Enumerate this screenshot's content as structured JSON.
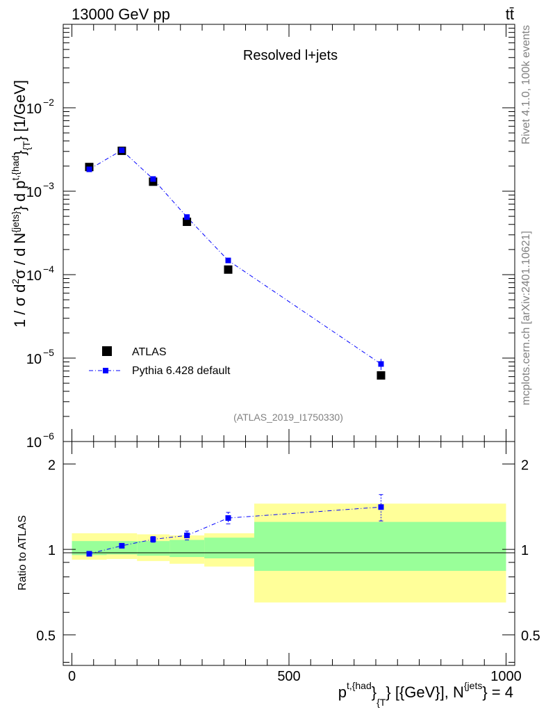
{
  "header": {
    "energy_label": "13000 GeV pp",
    "process_label": "tt̄"
  },
  "side_labels": {
    "rivet": "Rivet 4.1.0,  100k events",
    "source": "mcplots.cern.ch [arXiv:2401.10621]"
  },
  "colors": {
    "data": "#000000",
    "mc": "#0000ff",
    "band_inner": "#99ff99",
    "band_outer": "#ffff99",
    "watermark": "#808080"
  },
  "chart_data": [
    {
      "type": "scatter",
      "panel": "main",
      "title": "Resolved l+jets",
      "analysis_label": "(ATLAS_2019_I1750330)",
      "ylabel": {
        "prefix": "1 / σ d",
        "sup1": "2",
        "mid1": "σ / d N",
        "sup2": "{jets}",
        "mid2": "} d p",
        "sup3": "t,{had",
        "mid3": "}",
        "sub1": "{T",
        "suffix": "} [1/GeV]"
      },
      "yscale": "log",
      "ylim": [
        1e-06,
        0.1
      ],
      "xlim": [
        -20,
        1020
      ],
      "ytick_labels": [
        {
          "value": 1e-06,
          "base": "10",
          "exp": "−6"
        },
        {
          "value": 1e-05,
          "base": "10",
          "exp": "−5"
        },
        {
          "value": 0.0001,
          "base": "10",
          "exp": "−4"
        },
        {
          "value": 0.001,
          "base": "10",
          "exp": "−3"
        },
        {
          "value": 0.01,
          "base": "10",
          "exp": "−2"
        }
      ],
      "legend": {
        "position": "bottom-left",
        "entries": [
          "ATLAS",
          "Pythia 6.428 default"
        ]
      },
      "series": [
        {
          "name": "ATLAS",
          "marker": "square",
          "points": [
            {
              "x": 40,
              "y": 0.00195
            },
            {
              "x": 115,
              "y": 0.00305
            },
            {
              "x": 187,
              "y": 0.0013
            },
            {
              "x": 265,
              "y": 0.00043
            },
            {
              "x": 360,
              "y": 0.000115
            },
            {
              "x": 712,
              "y": 6.2e-06
            }
          ]
        },
        {
          "name": "Pythia 6.428 default",
          "marker": "small-square",
          "line": "dash-dot",
          "points": [
            {
              "x": 40,
              "y": 0.00183,
              "err": 5e-05
            },
            {
              "x": 115,
              "y": 0.0031,
              "err": 7e-05
            },
            {
              "x": 187,
              "y": 0.0014,
              "err": 5e-05
            },
            {
              "x": 265,
              "y": 0.00049,
              "err": 2e-05
            },
            {
              "x": 360,
              "y": 0.000148,
              "err": 7e-06
            },
            {
              "x": 712,
              "y": 8.5e-06,
              "err": 1.3e-06
            }
          ]
        }
      ]
    },
    {
      "type": "scatter",
      "panel": "ratio",
      "ylabel": "Ratio to ATLAS",
      "yscale": "log",
      "ylim": [
        0.39,
        2.4
      ],
      "xlim": [
        -20,
        1020
      ],
      "ytick_labels": [
        {
          "value": 0.5,
          "label": "0.5"
        },
        {
          "value": 1,
          "label": "1"
        },
        {
          "value": 2,
          "label": "2"
        }
      ],
      "xtick_labels": [
        {
          "value": 0,
          "label": "0"
        },
        {
          "value": 500,
          "label": "500"
        },
        {
          "value": 1000,
          "label": "1000"
        }
      ],
      "xlabel": {
        "prefix": "p",
        "sup1": "t,{had",
        "mid1": "}",
        "sub1": "{T",
        "mid2": "} [{GeV}], N",
        "sup2": "{jets",
        "suffix": "} = 4"
      },
      "bands": [
        {
          "x0": 0,
          "x1": 80,
          "inner": [
            0.955,
            1.07
          ],
          "outer": [
            0.92,
            1.14
          ]
        },
        {
          "x0": 80,
          "x1": 150,
          "inner": [
            0.96,
            1.07
          ],
          "outer": [
            0.925,
            1.14
          ]
        },
        {
          "x0": 150,
          "x1": 225,
          "inner": [
            0.95,
            1.07
          ],
          "outer": [
            0.91,
            1.13
          ]
        },
        {
          "x0": 225,
          "x1": 305,
          "inner": [
            0.94,
            1.08
          ],
          "outer": [
            0.89,
            1.12
          ]
        },
        {
          "x0": 305,
          "x1": 420,
          "inner": [
            0.93,
            1.1
          ],
          "outer": [
            0.87,
            1.14
          ]
        },
        {
          "x0": 420,
          "x1": 1000,
          "inner": [
            0.84,
            1.25
          ],
          "outer": [
            0.65,
            1.45
          ]
        }
      ],
      "series": [
        {
          "name": "Pythia 6.428 default",
          "points": [
            {
              "x": 40,
              "y": 0.965,
              "err": 0.01
            },
            {
              "x": 115,
              "y": 1.03,
              "err": 0.012
            },
            {
              "x": 187,
              "y": 1.085,
              "err": 0.025
            },
            {
              "x": 265,
              "y": 1.12,
              "err": 0.04
            },
            {
              "x": 360,
              "y": 1.29,
              "err": 0.06
            },
            {
              "x": 712,
              "y": 1.41,
              "err": 0.15
            }
          ]
        }
      ]
    }
  ]
}
